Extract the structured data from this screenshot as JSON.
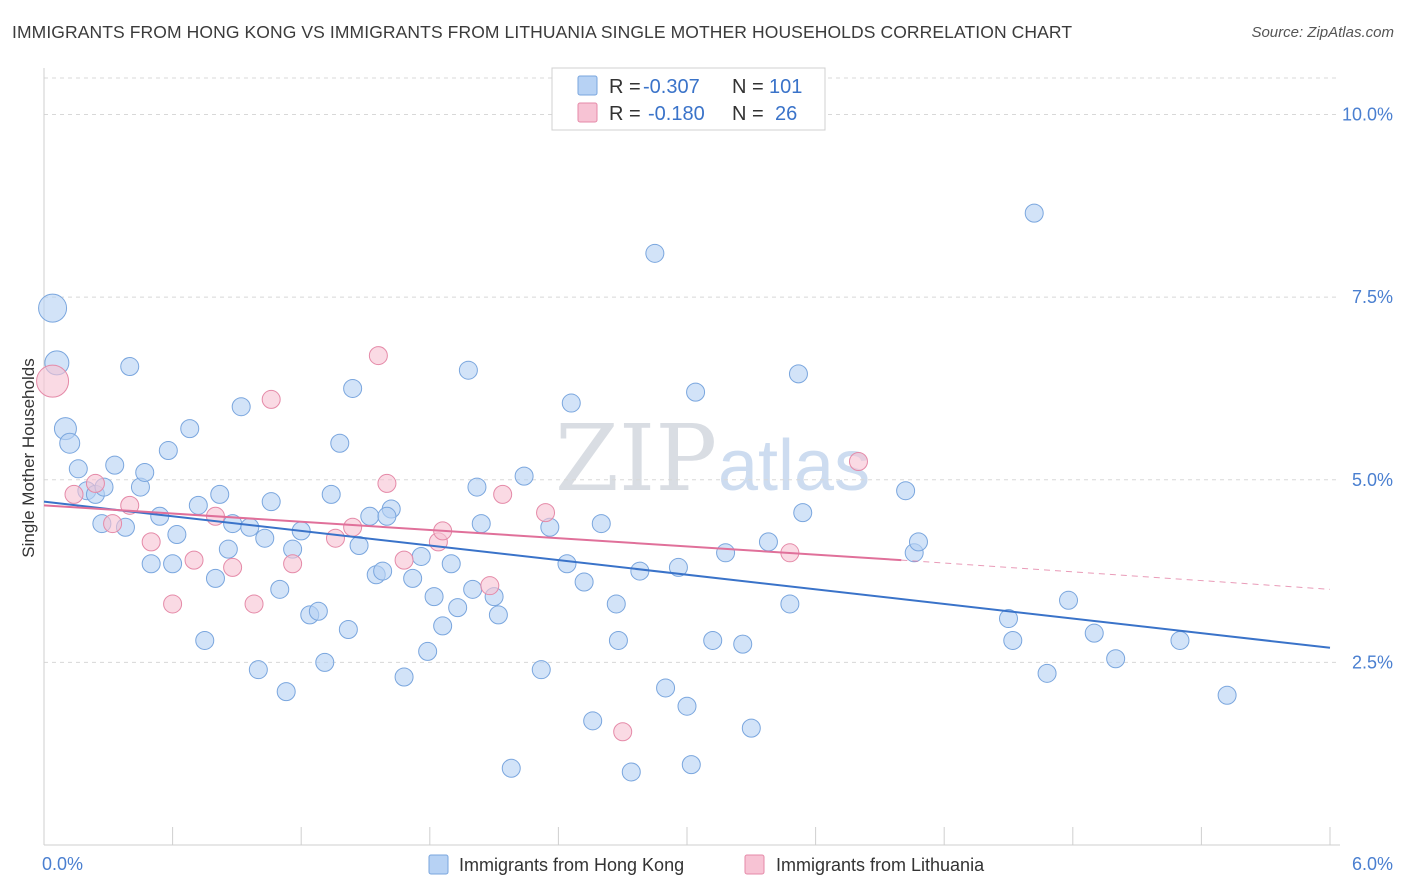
{
  "title": "IMMIGRANTS FROM HONG KONG VS IMMIGRANTS FROM LITHUANIA SINGLE MOTHER HOUSEHOLDS CORRELATION CHART",
  "source": "Source: ZipAtlas.com",
  "watermark": {
    "zip": "ZIP",
    "atlas": "atlas"
  },
  "legend_box": {
    "rows": [
      {
        "r_label": "R = ",
        "r_value": "-0.307",
        "n_label": "N = ",
        "n_value": "101"
      },
      {
        "r_label": "R = ",
        "r_value": "-0.180",
        "n_label": "N = ",
        "n_value": "26"
      }
    ]
  },
  "colors": {
    "blue_fill": "#b7d2f4",
    "blue_stroke": "#7aa6de",
    "blue_line": "#3a73c9",
    "pink_fill": "#f7c3d4",
    "pink_stroke": "#e58aa8",
    "pink_line": "#e0709a",
    "axis_text": "#4a7fd0",
    "grid": "#d8d8d8"
  },
  "chart_data": {
    "type": "scatter",
    "title": "IMMIGRANTS FROM HONG KONG VS IMMIGRANTS FROM LITHUANIA SINGLE MOTHER HOUSEHOLDS CORRELATION CHART",
    "xlabel": "",
    "ylabel": "Single Mother Households",
    "xlim": [
      0,
      6
    ],
    "ylim": [
      0,
      10.5
    ],
    "x_tick_labels": [
      "0.0%",
      "6.0%"
    ],
    "y_ticks": [
      2.5,
      5.0,
      7.5,
      10.0
    ],
    "y_tick_labels": [
      "2.5%",
      "5.0%",
      "7.5%",
      "10.0%"
    ],
    "grid": "horizontal dashed",
    "legend_placement": "bottom",
    "series": [
      {
        "name": "Immigrants from Hong Kong",
        "color": "#b7d2f4",
        "trend": {
          "x": [
            0.0,
            6.0
          ],
          "y": [
            4.7,
            2.7
          ],
          "dashed": false
        },
        "points": [
          {
            "x": 0.04,
            "y": 7.35,
            "s": 14
          },
          {
            "x": 0.06,
            "y": 6.6,
            "s": 12
          },
          {
            "x": 0.1,
            "y": 5.7,
            "s": 11
          },
          {
            "x": 0.12,
            "y": 5.5,
            "s": 10
          },
          {
            "x": 0.16,
            "y": 5.15,
            "s": 9
          },
          {
            "x": 0.2,
            "y": 4.85,
            "s": 9
          },
          {
            "x": 0.24,
            "y": 4.8,
            "s": 9
          },
          {
            "x": 0.28,
            "y": 4.9,
            "s": 9
          },
          {
            "x": 0.33,
            "y": 5.2,
            "s": 9
          },
          {
            "x": 0.38,
            "y": 4.35,
            "s": 9
          },
          {
            "x": 0.27,
            "y": 4.4,
            "s": 9
          },
          {
            "x": 0.4,
            "y": 6.55,
            "s": 9
          },
          {
            "x": 0.45,
            "y": 4.9,
            "s": 9
          },
          {
            "x": 0.47,
            "y": 5.1,
            "s": 9
          },
          {
            "x": 0.5,
            "y": 3.85,
            "s": 9
          },
          {
            "x": 0.54,
            "y": 4.5,
            "s": 9
          },
          {
            "x": 0.58,
            "y": 5.4,
            "s": 9
          },
          {
            "x": 0.6,
            "y": 3.85,
            "s": 9
          },
          {
            "x": 0.62,
            "y": 4.25,
            "s": 9
          },
          {
            "x": 0.68,
            "y": 5.7,
            "s": 9
          },
          {
            "x": 0.72,
            "y": 4.65,
            "s": 9
          },
          {
            "x": 0.75,
            "y": 2.8,
            "s": 9
          },
          {
            "x": 0.8,
            "y": 3.65,
            "s": 9
          },
          {
            "x": 0.82,
            "y": 4.8,
            "s": 9
          },
          {
            "x": 0.86,
            "y": 4.05,
            "s": 9
          },
          {
            "x": 0.88,
            "y": 4.4,
            "s": 9
          },
          {
            "x": 0.92,
            "y": 6.0,
            "s": 9
          },
          {
            "x": 0.96,
            "y": 4.35,
            "s": 9
          },
          {
            "x": 1.0,
            "y": 2.4,
            "s": 9
          },
          {
            "x": 1.03,
            "y": 4.2,
            "s": 9
          },
          {
            "x": 1.06,
            "y": 4.7,
            "s": 9
          },
          {
            "x": 1.1,
            "y": 3.5,
            "s": 9
          },
          {
            "x": 1.13,
            "y": 2.1,
            "s": 9
          },
          {
            "x": 1.16,
            "y": 4.05,
            "s": 9
          },
          {
            "x": 1.2,
            "y": 4.3,
            "s": 9
          },
          {
            "x": 1.24,
            "y": 3.15,
            "s": 9
          },
          {
            "x": 1.28,
            "y": 3.2,
            "s": 9
          },
          {
            "x": 1.31,
            "y": 2.5,
            "s": 9
          },
          {
            "x": 1.34,
            "y": 4.8,
            "s": 9
          },
          {
            "x": 1.38,
            "y": 5.5,
            "s": 9
          },
          {
            "x": 1.42,
            "y": 2.95,
            "s": 9
          },
          {
            "x": 1.44,
            "y": 6.25,
            "s": 9
          },
          {
            "x": 1.47,
            "y": 4.1,
            "s": 9
          },
          {
            "x": 1.52,
            "y": 4.5,
            "s": 9
          },
          {
            "x": 1.55,
            "y": 3.7,
            "s": 9
          },
          {
            "x": 1.58,
            "y": 3.75,
            "s": 9
          },
          {
            "x": 1.62,
            "y": 4.6,
            "s": 9
          },
          {
            "x": 1.6,
            "y": 4.5,
            "s": 9
          },
          {
            "x": 1.68,
            "y": 2.3,
            "s": 9
          },
          {
            "x": 1.72,
            "y": 3.65,
            "s": 9
          },
          {
            "x": 1.76,
            "y": 3.95,
            "s": 9
          },
          {
            "x": 1.79,
            "y": 2.65,
            "s": 9
          },
          {
            "x": 1.82,
            "y": 3.4,
            "s": 9
          },
          {
            "x": 1.86,
            "y": 3.0,
            "s": 9
          },
          {
            "x": 1.9,
            "y": 3.85,
            "s": 9
          },
          {
            "x": 1.93,
            "y": 3.25,
            "s": 9
          },
          {
            "x": 1.98,
            "y": 6.5,
            "s": 9
          },
          {
            "x": 2.0,
            "y": 3.5,
            "s": 9
          },
          {
            "x": 2.04,
            "y": 4.4,
            "s": 9
          },
          {
            "x": 2.1,
            "y": 3.4,
            "s": 9
          },
          {
            "x": 2.12,
            "y": 3.15,
            "s": 9
          },
          {
            "x": 2.18,
            "y": 1.05,
            "s": 9
          },
          {
            "x": 2.24,
            "y": 5.05,
            "s": 9
          },
          {
            "x": 2.32,
            "y": 2.4,
            "s": 9
          },
          {
            "x": 2.36,
            "y": 4.35,
            "s": 9
          },
          {
            "x": 2.44,
            "y": 3.85,
            "s": 9
          },
          {
            "x": 2.46,
            "y": 6.05,
            "s": 9
          },
          {
            "x": 2.52,
            "y": 3.6,
            "s": 9
          },
          {
            "x": 2.56,
            "y": 1.7,
            "s": 9
          },
          {
            "x": 2.6,
            "y": 4.4,
            "s": 9
          },
          {
            "x": 2.67,
            "y": 3.3,
            "s": 9
          },
          {
            "x": 2.68,
            "y": 2.8,
            "s": 9
          },
          {
            "x": 2.74,
            "y": 1.0,
            "s": 9
          },
          {
            "x": 2.78,
            "y": 3.75,
            "s": 9
          },
          {
            "x": 2.85,
            "y": 8.1,
            "s": 9
          },
          {
            "x": 2.9,
            "y": 2.15,
            "s": 9
          },
          {
            "x": 2.96,
            "y": 3.8,
            "s": 9
          },
          {
            "x": 3.0,
            "y": 1.9,
            "s": 9
          },
          {
            "x": 3.02,
            "y": 1.1,
            "s": 9
          },
          {
            "x": 3.04,
            "y": 6.2,
            "s": 9
          },
          {
            "x": 3.12,
            "y": 2.8,
            "s": 9
          },
          {
            "x": 3.18,
            "y": 4.0,
            "s": 9
          },
          {
            "x": 3.26,
            "y": 2.75,
            "s": 9
          },
          {
            "x": 3.3,
            "y": 1.6,
            "s": 9
          },
          {
            "x": 3.38,
            "y": 4.15,
            "s": 9
          },
          {
            "x": 3.48,
            "y": 3.3,
            "s": 9
          },
          {
            "x": 3.52,
            "y": 6.45,
            "s": 9
          },
          {
            "x": 3.54,
            "y": 4.55,
            "s": 9
          },
          {
            "x": 4.02,
            "y": 4.85,
            "s": 9
          },
          {
            "x": 4.06,
            "y": 4.0,
            "s": 9
          },
          {
            "x": 4.08,
            "y": 4.15,
            "s": 9
          },
          {
            "x": 4.62,
            "y": 8.65,
            "s": 9
          },
          {
            "x": 4.5,
            "y": 3.1,
            "s": 9
          },
          {
            "x": 4.52,
            "y": 2.8,
            "s": 9
          },
          {
            "x": 4.68,
            "y": 2.35,
            "s": 9
          },
          {
            "x": 4.78,
            "y": 3.35,
            "s": 9
          },
          {
            "x": 5.0,
            "y": 2.55,
            "s": 9
          },
          {
            "x": 5.3,
            "y": 2.8,
            "s": 9
          },
          {
            "x": 5.52,
            "y": 2.05,
            "s": 9
          },
          {
            "x": 4.9,
            "y": 2.9,
            "s": 9
          },
          {
            "x": 2.02,
            "y": 4.9,
            "s": 9
          }
        ]
      },
      {
        "name": "Immigrants from Lithuania",
        "color": "#f7c3d4",
        "trend": {
          "x": [
            0.0,
            4.0,
            6.0
          ],
          "y": [
            4.65,
            3.9,
            3.5
          ],
          "dashed_from": 4.0
        },
        "points": [
          {
            "x": 0.04,
            "y": 6.35,
            "s": 16
          },
          {
            "x": 0.14,
            "y": 4.8,
            "s": 9
          },
          {
            "x": 0.24,
            "y": 4.95,
            "s": 9
          },
          {
            "x": 0.32,
            "y": 4.4,
            "s": 9
          },
          {
            "x": 0.4,
            "y": 4.65,
            "s": 9
          },
          {
            "x": 0.5,
            "y": 4.15,
            "s": 9
          },
          {
            "x": 0.6,
            "y": 3.3,
            "s": 9
          },
          {
            "x": 0.7,
            "y": 3.9,
            "s": 9
          },
          {
            "x": 0.8,
            "y": 4.5,
            "s": 9
          },
          {
            "x": 0.88,
            "y": 3.8,
            "s": 9
          },
          {
            "x": 0.98,
            "y": 3.3,
            "s": 9
          },
          {
            "x": 1.06,
            "y": 6.1,
            "s": 9
          },
          {
            "x": 1.16,
            "y": 3.85,
            "s": 9
          },
          {
            "x": 1.36,
            "y": 4.2,
            "s": 9
          },
          {
            "x": 1.44,
            "y": 4.35,
            "s": 9
          },
          {
            "x": 1.56,
            "y": 6.7,
            "s": 9
          },
          {
            "x": 1.6,
            "y": 4.95,
            "s": 9
          },
          {
            "x": 1.68,
            "y": 3.9,
            "s": 9
          },
          {
            "x": 1.84,
            "y": 4.15,
            "s": 9
          },
          {
            "x": 1.86,
            "y": 4.3,
            "s": 9
          },
          {
            "x": 2.08,
            "y": 3.55,
            "s": 9
          },
          {
            "x": 2.14,
            "y": 4.8,
            "s": 9
          },
          {
            "x": 2.34,
            "y": 4.55,
            "s": 9
          },
          {
            "x": 2.7,
            "y": 1.55,
            "s": 9
          },
          {
            "x": 3.48,
            "y": 4.0,
            "s": 9
          },
          {
            "x": 3.8,
            "y": 5.25,
            "s": 9
          }
        ]
      }
    ]
  },
  "bottom_legend": [
    {
      "label": "Immigrants from Hong Kong"
    },
    {
      "label": "Immigrants from Lithuania"
    }
  ]
}
